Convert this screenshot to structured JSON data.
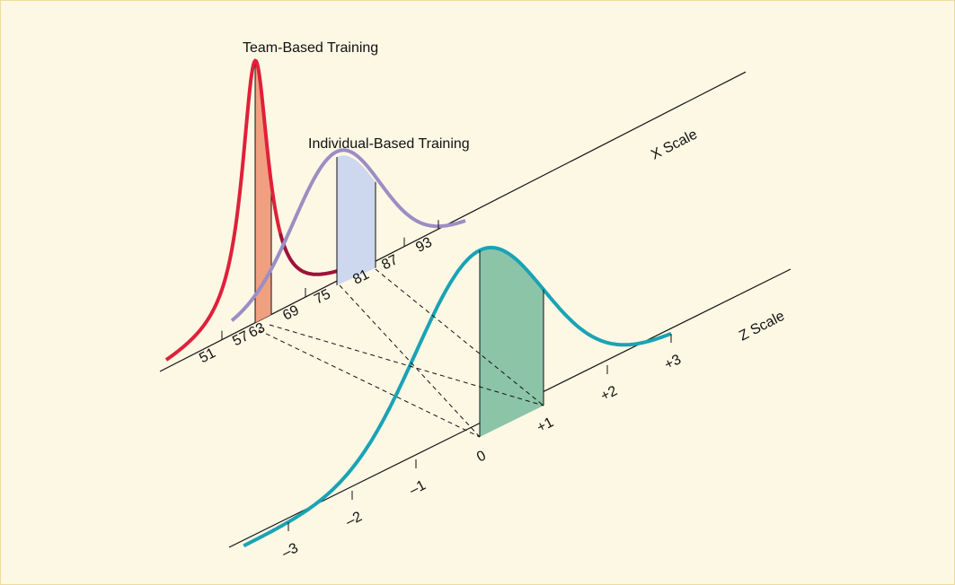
{
  "labels": {
    "team": "Team-Based Training",
    "individual": "Individual-Based Training",
    "x_scale": "X Scale",
    "z_scale": "Z Scale"
  },
  "x_ticks": [
    "51",
    "57",
    "63",
    "69",
    "75",
    "81",
    "87",
    "93"
  ],
  "z_ticks": [
    "–3",
    "–2",
    "–1",
    "0",
    "+1",
    "+2",
    "+3"
  ]
}
